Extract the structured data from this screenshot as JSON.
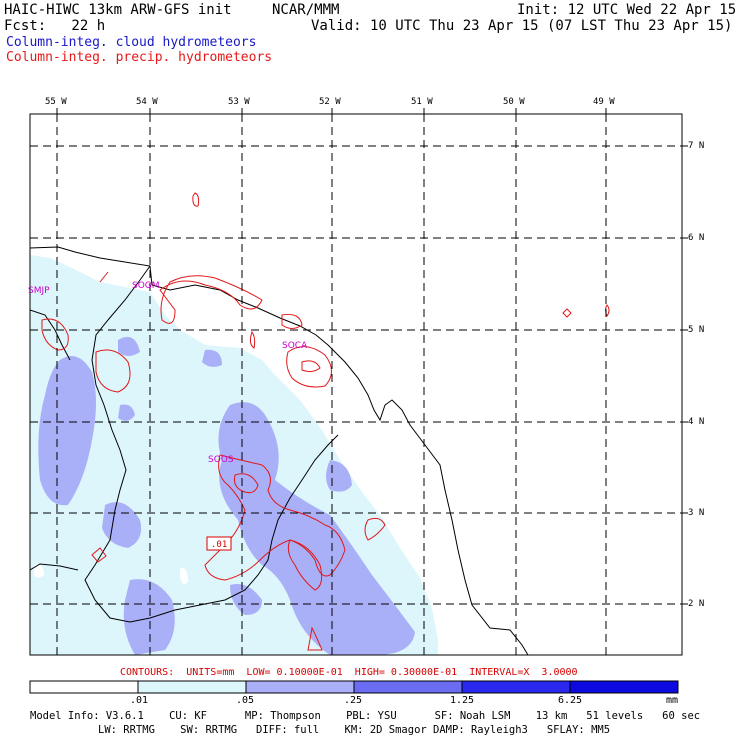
{
  "header": {
    "model_title": "HAIC-HIWC 13km ARW-GFS init",
    "org": "NCAR/MMM",
    "init": "Init: 12 UTC Wed 22 Apr 15",
    "fcst": "Fcst:   22 h",
    "valid": "Valid: 10 UTC Thu 23 Apr 15 (07 LST Thu 23 Apr 15)",
    "legend_cloud": "Column-integ. cloud hydrometeors",
    "legend_precip": "Column-integ. precip. hydrometeors"
  },
  "map": {
    "lon_labels": [
      "55 W",
      "54 W",
      "53 W",
      "52 W",
      "51 W",
      "50 W",
      "49 W"
    ],
    "lat_labels": [
      "7 N",
      "6 N",
      "5 N",
      "4 N",
      "3 N",
      "2 N"
    ],
    "station_labels": [
      "SMJP",
      "SOGM",
      "SOCA",
      "SOOS"
    ],
    "contour_label": ".01"
  },
  "contours_line": "CONTOURS:  UNITS=mm  LOW= 0.10000E-01  HIGH= 0.30000E-01  INTERVAL=X  3.0000",
  "colorbar": {
    "ticks": [
      ".01",
      ".05",
      ".25",
      "1.25",
      "6.25"
    ],
    "units": "mm",
    "colors": [
      "#ffffff",
      "#ddf6fb",
      "#aab0f8",
      "#6a6cf2",
      "#2a28ee",
      "#0d0ae0"
    ]
  },
  "model_info": {
    "line1": "Model Info: V3.6.1    CU: KF      MP: Thompson    PBL: YSU      SF: Noah LSM    13 km   51 levels   60 sec",
    "line2": "LW: RRTMG    SW: RRTMG   DIFF: full    KM: 2D Smagor DAMP: Rayleigh3   SFLAY: MM5"
  },
  "colors": {
    "cloud_legend": "#1818c8",
    "precip_legend": "#e81818",
    "station": "#cc00cc",
    "contour_text": "#d80000"
  }
}
